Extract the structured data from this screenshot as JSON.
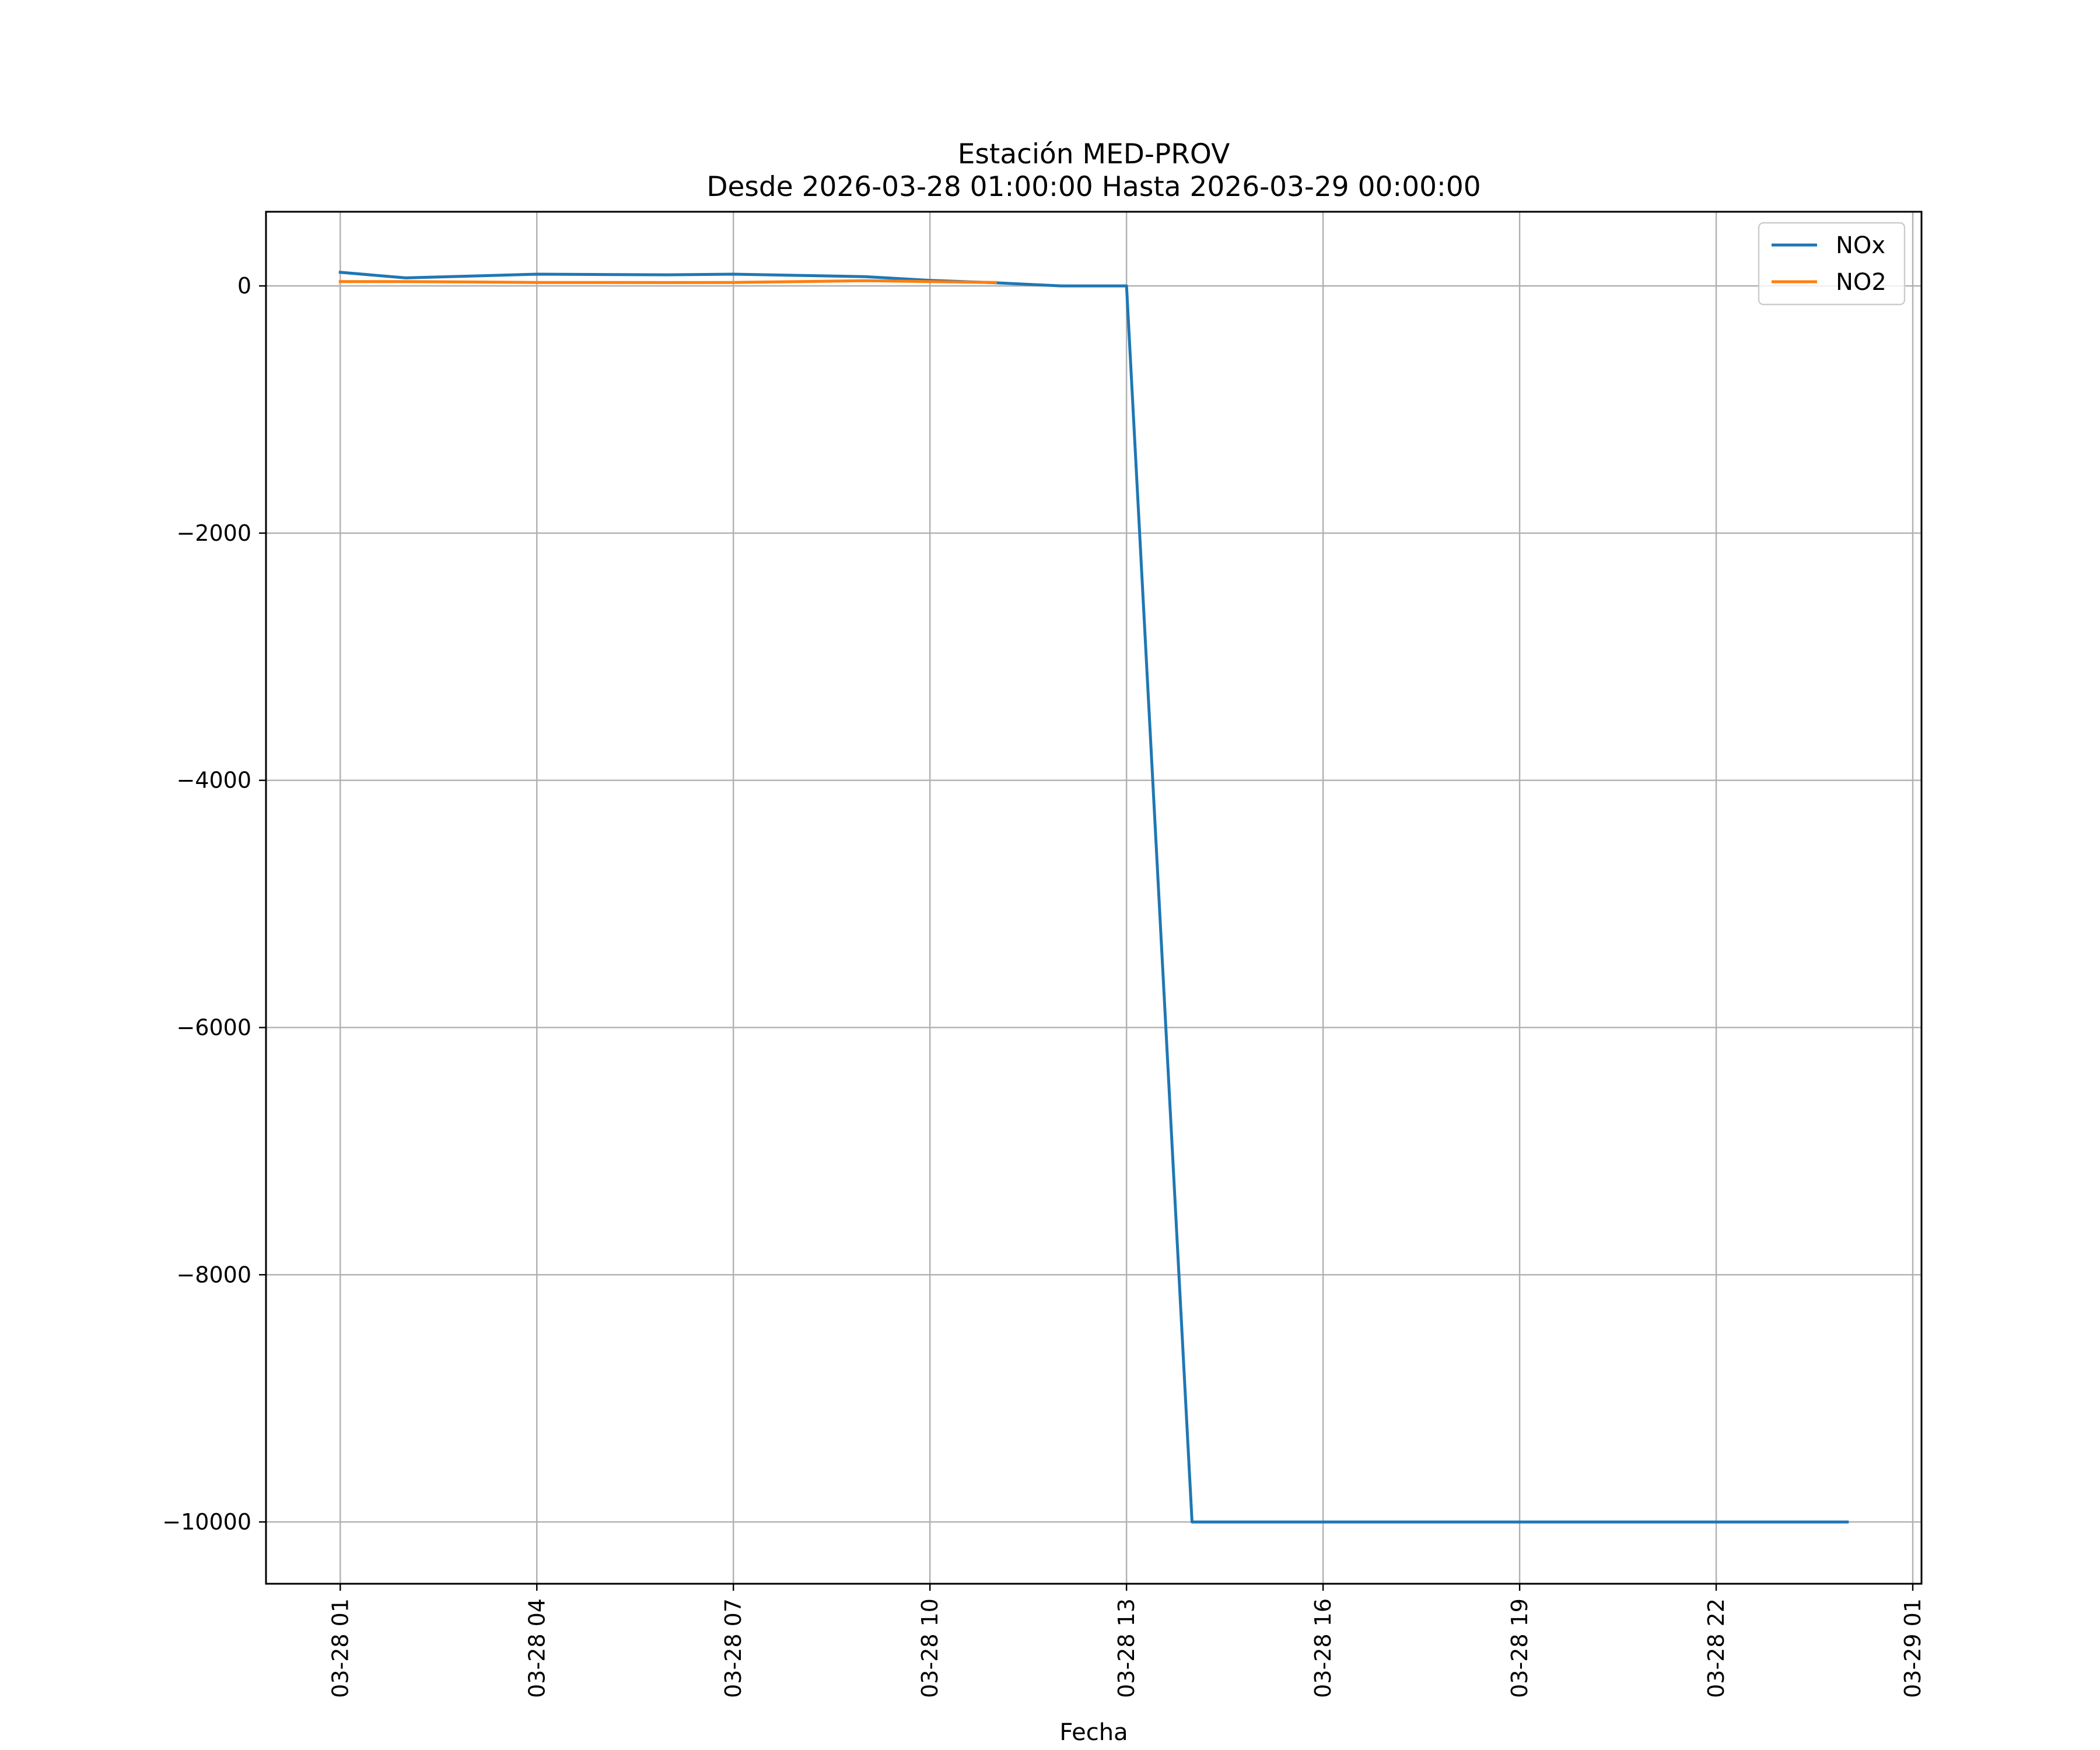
{
  "chart_data": {
    "type": "line",
    "title": "Estación MED-PROV",
    "subtitle": "Desde 2026-03-28 01:00:00 Hasta 2026-03-29 00:00:00",
    "xlabel": "Fecha",
    "ylabel": "",
    "grid": true,
    "legend_position": "top-right",
    "ylim": [
      -10500,
      600
    ],
    "xlim": [
      "2026-03-27 23:52",
      "2026-03-29 01:08"
    ],
    "x_ticks": [
      "2026-03-28 01:00",
      "2026-03-28 04:00",
      "2026-03-28 07:00",
      "2026-03-28 10:00",
      "2026-03-28 13:00",
      "2026-03-28 16:00",
      "2026-03-28 19:00",
      "2026-03-28 22:00",
      "2026-03-29 01:00"
    ],
    "x_tick_labels": [
      "03-28 01",
      "03-28 04",
      "03-28 07",
      "03-28 10",
      "03-28 13",
      "03-28 16",
      "03-28 19",
      "03-28 22",
      "03-29 01"
    ],
    "y_ticks": [
      0,
      -2000,
      -4000,
      -6000,
      -8000,
      -10000
    ],
    "y_tick_labels": [
      "0",
      "−2000",
      "−4000",
      "−6000",
      "−8000",
      "−10000"
    ],
    "series": [
      {
        "name": "NOx",
        "color": "#1f77b4",
        "x": [
          "2026-03-28 01:00",
          "2026-03-28 02:00",
          "2026-03-28 03:00",
          "2026-03-28 04:00",
          "2026-03-28 05:00",
          "2026-03-28 06:00",
          "2026-03-28 07:00",
          "2026-03-28 08:00",
          "2026-03-28 09:00",
          "2026-03-28 10:00",
          "2026-03-28 11:00",
          "2026-03-28 12:00",
          "2026-03-28 13:00",
          "2026-03-28 14:00",
          "2026-03-28 15:00",
          "2026-03-28 16:00",
          "2026-03-28 17:00",
          "2026-03-28 18:00",
          "2026-03-28 19:00",
          "2026-03-28 20:00",
          "2026-03-28 21:00",
          "2026-03-28 22:00",
          "2026-03-28 23:00",
          "2026-03-29 00:00"
        ],
        "values": [
          110,
          65,
          80,
          95,
          92,
          90,
          95,
          85,
          75,
          45,
          25,
          0,
          0,
          -10000,
          -10000,
          -10000,
          -10000,
          -10000,
          -10000,
          -10000,
          -10000,
          -10000,
          -10000,
          -10000
        ]
      },
      {
        "name": "NO2",
        "color": "#ff7f0e",
        "x": [
          "2026-03-28 01:00",
          "2026-03-28 02:00",
          "2026-03-28 03:00",
          "2026-03-28 04:00",
          "2026-03-28 05:00",
          "2026-03-28 06:00",
          "2026-03-28 07:00",
          "2026-03-28 08:00",
          "2026-03-28 09:00",
          "2026-03-28 10:00",
          "2026-03-28 11:00"
        ],
        "values": [
          35,
          35,
          32,
          28,
          28,
          27,
          28,
          35,
          42,
          35,
          28
        ]
      }
    ]
  }
}
